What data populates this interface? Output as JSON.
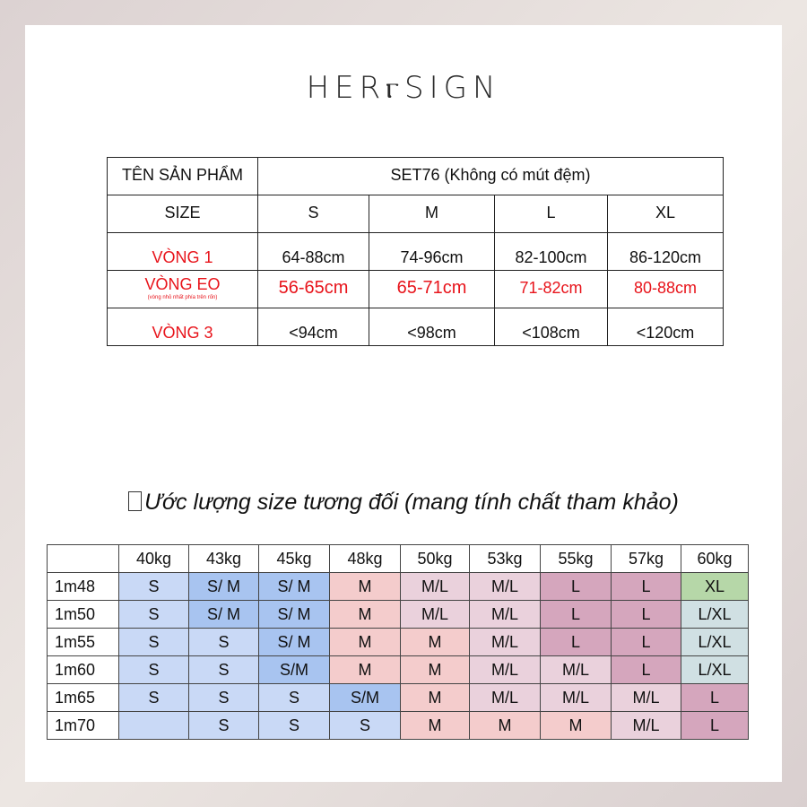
{
  "brand": "HERⲅSIGN",
  "size_table": {
    "product_label": "TÊN SẢN PHẨM",
    "product_name": "SET76 (Không có mút đệm)",
    "size_label": "SIZE",
    "sizes": [
      "S",
      "M",
      "L",
      "XL"
    ],
    "rows": [
      {
        "label": "VÒNG 1",
        "values": [
          "64-88cm",
          "74-96cm",
          "82-100cm",
          "86-120cm"
        ],
        "highlight": false
      },
      {
        "label": "VÒNG EO",
        "note": "(vòng nhỏ nhất phía trên rốn)",
        "values": [
          "56-65cm",
          "65-71cm",
          "71-82cm",
          "80-88cm"
        ],
        "highlight": true
      },
      {
        "label": "VÒNG 3",
        "values": [
          "<94cm",
          "<98cm",
          "<108cm",
          "<120cm"
        ],
        "highlight": false
      }
    ]
  },
  "estimate": {
    "title": "Ước lượng size tương đối (mang tính chất tham khảo)",
    "weights": [
      "40kg",
      "43kg",
      "45kg",
      "48kg",
      "50kg",
      "53kg",
      "55kg",
      "57kg",
      "60kg"
    ],
    "colors": {
      "S": "#c9d9f6",
      "S/M": "#a8c4f0",
      "M": "#f4cccc",
      "M/L": "#ead1dc",
      "L": "#d5a6bd",
      "L/XL": "#d0e0e3",
      "XL": "#b6d7a8"
    },
    "rows": [
      {
        "height": "1m48",
        "cells": [
          {
            "v": "S",
            "c": "S"
          },
          {
            "v": "S/ M",
            "c": "S/M"
          },
          {
            "v": "S/ M",
            "c": "S/M"
          },
          {
            "v": "M",
            "c": "M"
          },
          {
            "v": "M/L",
            "c": "M/L"
          },
          {
            "v": "M/L",
            "c": "M/L"
          },
          {
            "v": "L",
            "c": "L"
          },
          {
            "v": "L",
            "c": "L"
          },
          {
            "v": "XL",
            "c": "XL"
          }
        ]
      },
      {
        "height": "1m50",
        "cells": [
          {
            "v": "S",
            "c": "S"
          },
          {
            "v": "S/ M",
            "c": "S/M"
          },
          {
            "v": "S/ M",
            "c": "S/M"
          },
          {
            "v": "M",
            "c": "M"
          },
          {
            "v": "M/L",
            "c": "M/L"
          },
          {
            "v": "M/L",
            "c": "M/L"
          },
          {
            "v": "L",
            "c": "L"
          },
          {
            "v": "L",
            "c": "L"
          },
          {
            "v": "L/XL",
            "c": "L/XL"
          }
        ]
      },
      {
        "height": "1m55",
        "cells": [
          {
            "v": "S",
            "c": "S"
          },
          {
            "v": "S",
            "c": "S"
          },
          {
            "v": "S/ M",
            "c": "S/M"
          },
          {
            "v": "M",
            "c": "M"
          },
          {
            "v": "M",
            "c": "M"
          },
          {
            "v": "M/L",
            "c": "M/L"
          },
          {
            "v": "L",
            "c": "L"
          },
          {
            "v": "L",
            "c": "L"
          },
          {
            "v": "L/XL",
            "c": "L/XL"
          }
        ]
      },
      {
        "height": "1m60",
        "cells": [
          {
            "v": "S",
            "c": "S"
          },
          {
            "v": "S",
            "c": "S"
          },
          {
            "v": "S/M",
            "c": "S/M"
          },
          {
            "v": "M",
            "c": "M"
          },
          {
            "v": "M",
            "c": "M"
          },
          {
            "v": "M/L",
            "c": "M/L"
          },
          {
            "v": "M/L",
            "c": "M/L"
          },
          {
            "v": "L",
            "c": "L"
          },
          {
            "v": "L/XL",
            "c": "L/XL"
          }
        ]
      },
      {
        "height": "1m65",
        "cells": [
          {
            "v": "S",
            "c": "S"
          },
          {
            "v": "S",
            "c": "S"
          },
          {
            "v": "S",
            "c": "S"
          },
          {
            "v": "S/M",
            "c": "S/M"
          },
          {
            "v": "M",
            "c": "M"
          },
          {
            "v": "M/L",
            "c": "M/L"
          },
          {
            "v": "M/L",
            "c": "M/L"
          },
          {
            "v": "M/L",
            "c": "M/L"
          },
          {
            "v": "L",
            "c": "L"
          }
        ]
      },
      {
        "height": "1m70",
        "cells": [
          {
            "v": "",
            "c": "S"
          },
          {
            "v": "S",
            "c": "S"
          },
          {
            "v": "S",
            "c": "S"
          },
          {
            "v": "S",
            "c": "S"
          },
          {
            "v": "M",
            "c": "M"
          },
          {
            "v": "M",
            "c": "M"
          },
          {
            "v": "M",
            "c": "M"
          },
          {
            "v": "M/L",
            "c": "M/L"
          },
          {
            "v": "L",
            "c": "L"
          }
        ]
      }
    ]
  }
}
